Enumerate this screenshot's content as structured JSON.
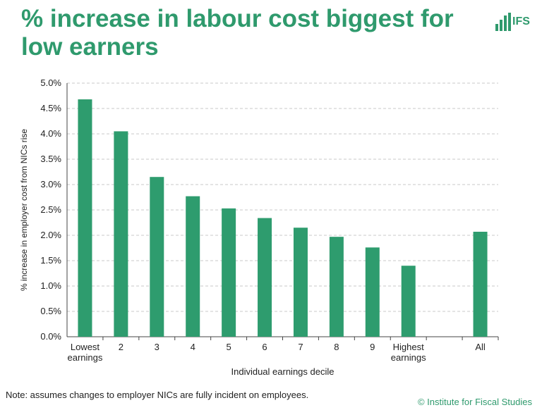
{
  "title": "% increase in labour cost biggest for low earners",
  "logo": {
    "text": "IFS"
  },
  "note": "Note: assumes changes to employer NICs are fully incident on employees.",
  "copyright": "© Institute for Fiscal Studies",
  "colors": {
    "bar": "#2e9c6e",
    "title": "#2f9a6d",
    "grid": "#c8c8c8",
    "axis": "#444444"
  },
  "chart_data": {
    "type": "bar",
    "title": "% increase in labour cost biggest for low earners",
    "xlabel": "Individual earnings decile",
    "ylabel": "% increase in employer cost from NICs rise",
    "ylim": [
      0,
      5.0
    ],
    "ytick_step": 0.5,
    "grid": true,
    "categories": [
      [
        "Lowest",
        "earnings"
      ],
      [
        "2"
      ],
      [
        "3"
      ],
      [
        "4"
      ],
      [
        "5"
      ],
      [
        "6"
      ],
      [
        "7"
      ],
      [
        "8"
      ],
      [
        "9"
      ],
      [
        "Highest",
        "earnings"
      ],
      [
        ""
      ],
      [
        "All"
      ]
    ],
    "values": [
      4.68,
      4.05,
      3.15,
      2.77,
      2.53,
      2.34,
      2.15,
      1.97,
      1.76,
      1.4,
      null,
      2.07
    ]
  }
}
